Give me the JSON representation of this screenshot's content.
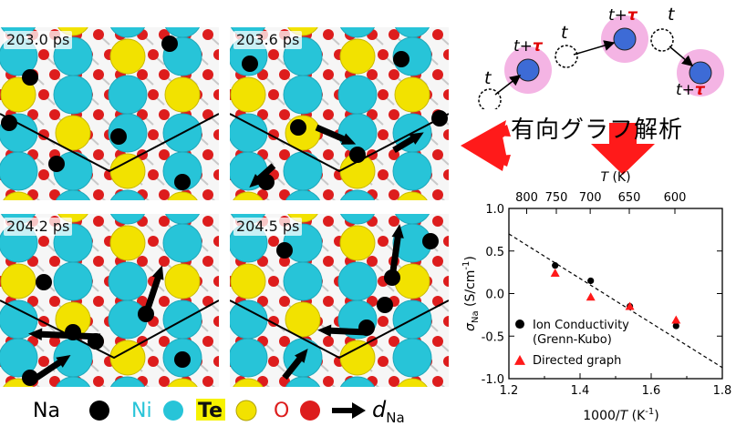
{
  "panels": [
    {
      "time": "203.0 ps"
    },
    {
      "time": "203.6 ps"
    },
    {
      "time": "204.2 ps"
    },
    {
      "time": "204.5 ps"
    }
  ],
  "legend": {
    "items": [
      {
        "label": "Na",
        "color": "#000000"
      },
      {
        "label": "Ni",
        "color": "#27c4d8"
      },
      {
        "label": "Te",
        "color": "#f2e200"
      },
      {
        "label": "O",
        "color": "#dd1d1d"
      }
    ],
    "arrow_label": "d",
    "arrow_sub": "Na"
  },
  "schematic": {
    "labels": [
      "t+τ",
      "t",
      "t+τ",
      "t",
      "t",
      "t+τ"
    ],
    "label_t": "t",
    "label_plus": "+",
    "label_tau": "τ",
    "title": "有向グラフ解析"
  },
  "chart_data": {
    "type": "scatter",
    "top_axis_label_var": "T",
    "top_axis_label_unit": " (K)",
    "top_ticks": [
      "800",
      "750",
      "700",
      "650",
      "600"
    ],
    "top_tick_T": [
      800,
      750,
      700,
      650,
      600
    ],
    "xlabel_main": "1000/",
    "xlabel_var": "T",
    "xlabel_unit": " (K",
    "xlabel_exp": "-1",
    "xlabel_close": ")",
    "ylabel_sym": "σ",
    "ylabel_sub": "Na",
    "ylabel_unit": " (S/cm",
    "ylabel_exp": "-1",
    "ylabel_close": ")",
    "xlim": [
      1.2,
      1.8
    ],
    "ylim": [
      -1.0,
      1.0
    ],
    "x_ticks": [
      "1.2",
      "1.4",
      "1.6",
      "1.8"
    ],
    "x_tick_vals": [
      1.2,
      1.4,
      1.6,
      1.8
    ],
    "y_ticks": [
      "1.0",
      "0.5",
      "0.0",
      "-0.5",
      "-1.0"
    ],
    "y_tick_vals": [
      1.0,
      0.5,
      0.0,
      -0.5,
      -1.0
    ],
    "series": [
      {
        "name": "Ion Conductivity",
        "name2": "(Grenn-Kubo)",
        "marker": "circle",
        "color": "#000000",
        "x": [
          1.33,
          1.43,
          1.54,
          1.67
        ],
        "y": [
          0.33,
          0.15,
          -0.15,
          -0.38
        ]
      },
      {
        "name": "Directed graph",
        "marker": "triangle",
        "color": "#ff1a1a",
        "x": [
          1.33,
          1.43,
          1.54,
          1.67
        ],
        "y": [
          0.24,
          -0.04,
          -0.15,
          -0.31
        ]
      }
    ],
    "fit_line": {
      "x": [
        1.2,
        1.8
      ],
      "y": [
        0.7,
        -0.87
      ]
    }
  }
}
